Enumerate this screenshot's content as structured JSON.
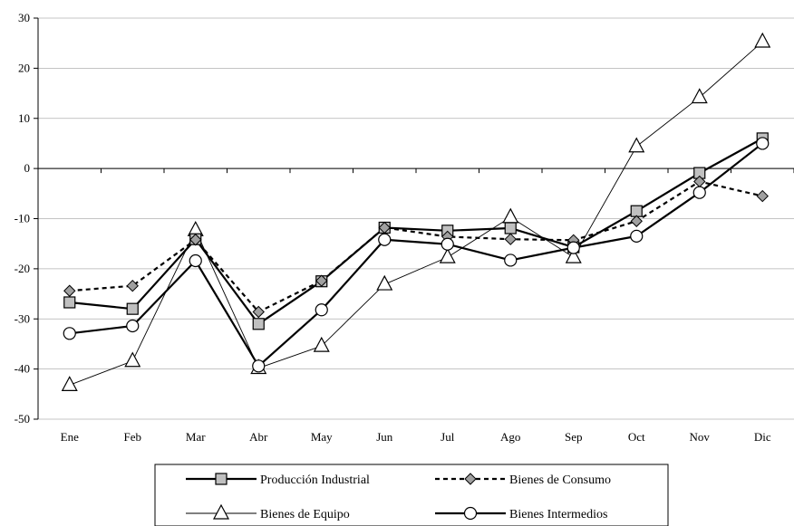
{
  "chart_data": {
    "type": "line",
    "title": "",
    "xlabel": "",
    "ylabel": "",
    "categories": [
      "Ene",
      "Feb",
      "Mar",
      "Abr",
      "May",
      "Jun",
      "Jul",
      "Ago",
      "Sep",
      "Oct",
      "Nov",
      "Dic"
    ],
    "ylim": [
      -50,
      30
    ],
    "yticks": [
      "30",
      "20",
      "10",
      "0",
      "-10",
      "-20",
      "-30",
      "-40",
      "-50"
    ],
    "grid": true,
    "legend_position": "bottom",
    "series": [
      {
        "name": "Producción Industrial",
        "marker": "square",
        "line": "solid-thick",
        "marker_fill": "#c0c0c0",
        "values": [
          -26.7,
          -28,
          -14.1,
          -31,
          -22.5,
          -11.8,
          -12.4,
          -11.9,
          -15.7,
          -8.5,
          -0.9,
          6
        ]
      },
      {
        "name": "Bienes de Consumo",
        "marker": "diamond",
        "line": "dashed-thick",
        "marker_fill": "#a0a0a0",
        "values": [
          -24.4,
          -23.4,
          -14.2,
          -28.6,
          -22.4,
          -11.8,
          -13.6,
          -14.1,
          -14.3,
          -10.5,
          -2.6,
          -5.5
        ]
      },
      {
        "name": "Bienes de Equipo",
        "marker": "triangle",
        "line": "solid-thin",
        "marker_fill": "#ffffff",
        "values": [
          -43.2,
          -38.4,
          -12.3,
          -39.8,
          -35.4,
          -23.1,
          -17.7,
          -9.7,
          -17.7,
          4.4,
          14.2,
          25.3
        ]
      },
      {
        "name": "Bienes Intermedios",
        "marker": "circle",
        "line": "solid-thick",
        "marker_fill": "#ffffff",
        "values": [
          -32.9,
          -31.4,
          -18.4,
          -39.4,
          -28.2,
          -14.2,
          -15.1,
          -18.3,
          -15.8,
          -13.5,
          -4.8,
          5
        ]
      }
    ]
  }
}
